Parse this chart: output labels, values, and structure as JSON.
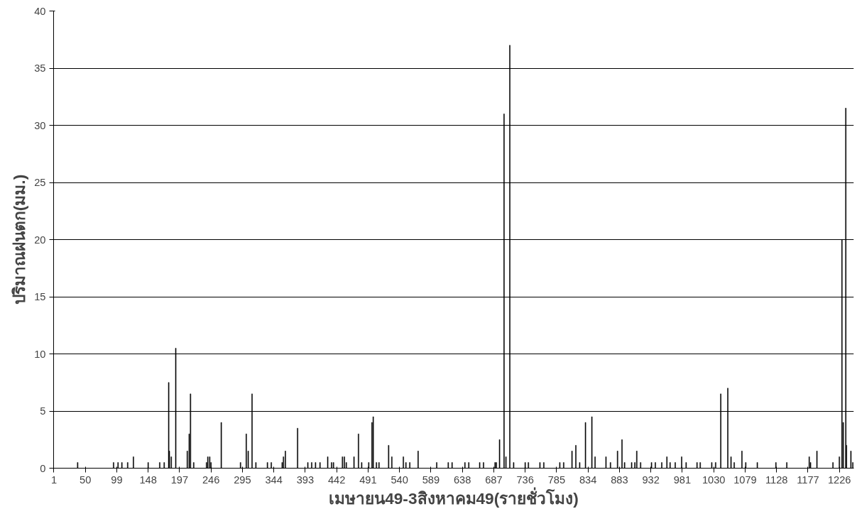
{
  "chart_data": {
    "type": "bar",
    "xlabel": "เมษายน49-3สิงหาคม49(รายชั่วโมง)",
    "ylabel": "ปริมาณฝนตก(มม.)",
    "color": "#000000",
    "x": [
      38,
      94,
      101,
      107,
      116,
      125,
      148,
      166,
      173,
      180,
      181,
      184,
      191,
      209,
      212,
      214,
      219,
      239,
      241,
      244,
      246,
      262,
      292,
      301,
      304,
      310,
      316,
      334,
      340,
      357,
      359,
      362,
      381,
      397,
      403,
      409,
      416,
      428,
      434,
      437,
      451,
      454,
      457,
      469,
      476,
      481,
      492,
      497,
      499,
      504,
      508,
      523,
      528,
      546,
      550,
      556,
      569,
      598,
      616,
      622,
      642,
      648,
      665,
      671,
      689,
      691,
      696,
      703,
      706,
      712,
      718,
      736,
      741,
      759,
      765,
      790,
      796,
      809,
      815,
      821,
      830,
      840,
      845,
      862,
      869,
      880,
      887,
      891,
      902,
      907,
      910,
      916,
      933,
      939,
      949,
      957,
      962,
      970,
      980,
      987,
      1004,
      1009,
      1027,
      1033,
      1041,
      1052,
      1057,
      1062,
      1074,
      1080,
      1098,
      1127,
      1144,
      1179,
      1181,
      1191,
      1216,
      1226,
      1230,
      1232,
      1236,
      1237,
      1244,
      1247
    ],
    "values": [
      0.5,
      0.5,
      0.5,
      0.5,
      0.5,
      1,
      0.5,
      0.5,
      0.5,
      7.5,
      1.5,
      1,
      10.5,
      1.5,
      3,
      6.5,
      0.5,
      0.5,
      1,
      1,
      0.5,
      4,
      0.5,
      3,
      1.5,
      6.5,
      0.5,
      0.5,
      0.5,
      0.5,
      1,
      1.5,
      3.5,
      0.5,
      0.5,
      0.5,
      0.5,
      1,
      0.5,
      0.5,
      1,
      1,
      0.5,
      1,
      3,
      0.5,
      0.5,
      4,
      4.5,
      0.5,
      0.5,
      2,
      1,
      1,
      0.5,
      0.5,
      1.5,
      0.5,
      0.5,
      0.5,
      0.5,
      0.5,
      0.5,
      0.5,
      0.5,
      0.5,
      2.5,
      31,
      1,
      37,
      0.5,
      0.5,
      0.5,
      0.5,
      0.5,
      0.5,
      0.5,
      1.5,
      2,
      0.5,
      4,
      4.5,
      1,
      1,
      0.5,
      1.5,
      2.5,
      0.5,
      0.5,
      0.5,
      1.5,
      0.5,
      0.5,
      0.5,
      0.5,
      1,
      0.5,
      0.5,
      1,
      0.5,
      0.5,
      0.5,
      0.5,
      0.5,
      6.5,
      7,
      1,
      0.5,
      1.5,
      0.5,
      0.5,
      0.5,
      0.5,
      1,
      0.5,
      1.5,
      0.5,
      1,
      20,
      4,
      31.5,
      2,
      1.5,
      0.5
    ],
    "xlim": [
      0.5,
      1248.5
    ],
    "xticks": [
      1,
      50,
      99,
      148,
      197,
      246,
      295,
      344,
      393,
      442,
      491,
      540,
      589,
      638,
      687,
      736,
      785,
      834,
      883,
      932,
      981,
      1030,
      1079,
      1128,
      1177,
      1226
    ],
    "ylim": [
      0,
      40
    ],
    "yticks": [
      0,
      5,
      10,
      15,
      20,
      25,
      30,
      35,
      40
    ],
    "grid": "y"
  }
}
